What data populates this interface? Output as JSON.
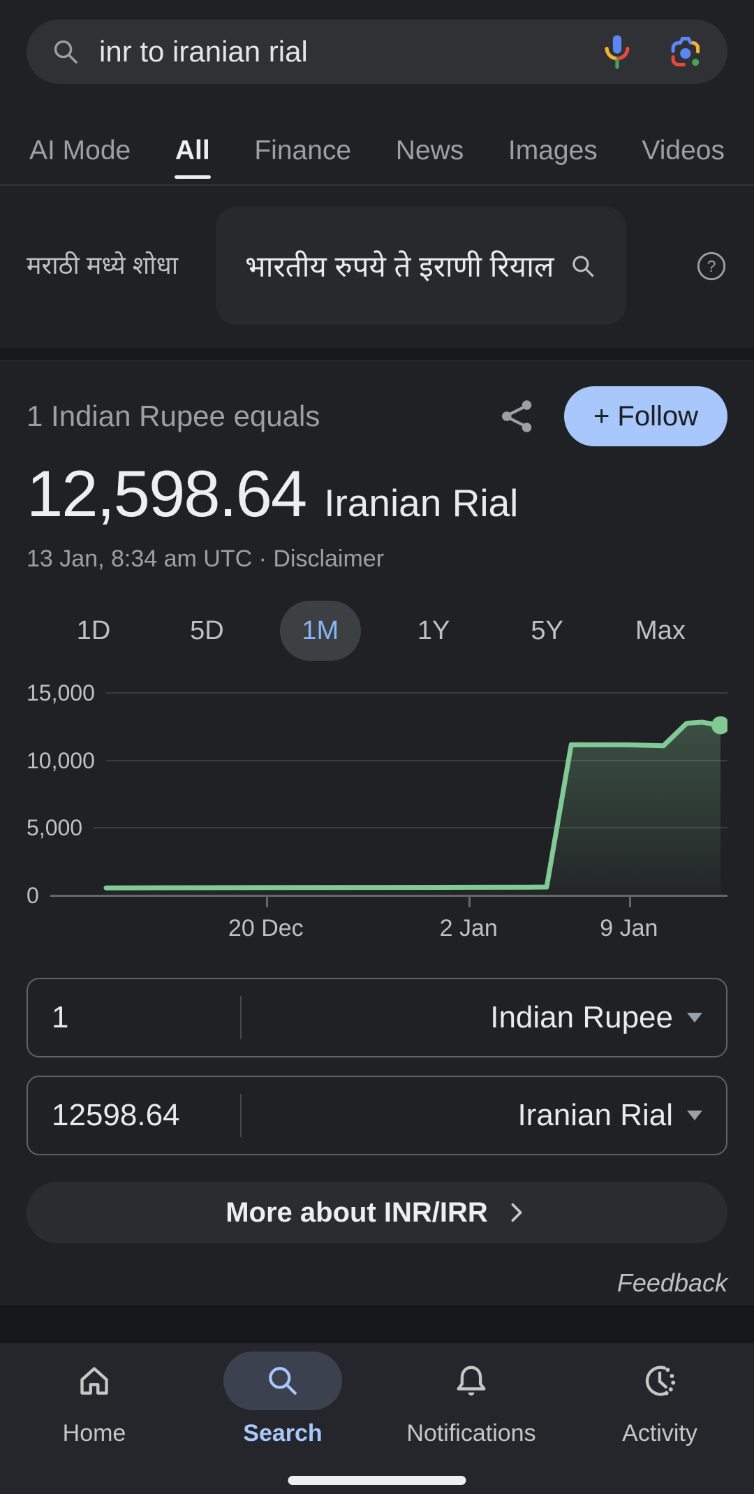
{
  "colors": {
    "accent_blue": "#8ab4f8",
    "follow_chip": "#a8c7fa",
    "chart_green": "#81c995"
  },
  "search_bar": {
    "query": "inr to iranian rial"
  },
  "tabs": [
    {
      "label": "AI Mode"
    },
    {
      "label": "All"
    },
    {
      "label": "Finance"
    },
    {
      "label": "News"
    },
    {
      "label": "Images"
    },
    {
      "label": "Videos"
    }
  ],
  "translate": {
    "label": "मराठी मध्ये शोधा",
    "query": "भारतीय रुपये ते इराणी रियाल"
  },
  "finance": {
    "subtitle": "1 Indian Rupee equals",
    "follow_label": "+ Follow",
    "rate_value": "12,598.64",
    "rate_currency": "Iranian Rial",
    "timestamp": "13 Jan, 8:34 am UTC · Disclaimer",
    "ranges": [
      {
        "label": "1D"
      },
      {
        "label": "5D"
      },
      {
        "label": "1M"
      },
      {
        "label": "1Y"
      },
      {
        "label": "5Y"
      },
      {
        "label": "Max"
      }
    ],
    "active_range": "1M",
    "converter": [
      {
        "amount": "1",
        "currency": "Indian Rupee"
      },
      {
        "amount": "12598.64",
        "currency": "Iranian Rial"
      }
    ],
    "more_label": "More about INR/IRR",
    "feedback_label": "Feedback"
  },
  "chart_data": {
    "type": "area",
    "title": "INR to IRR exchange rate, 1 month",
    "ylim": [
      0,
      15000
    ],
    "grid": true,
    "line_color": "#81c995",
    "last_value": 12598.64,
    "y_ticks": [
      {
        "value": 15000,
        "label": "15,000"
      },
      {
        "value": 10000,
        "label": "10,000"
      },
      {
        "value": 5000,
        "label": "5,000"
      },
      {
        "value": 0,
        "label": "0"
      }
    ],
    "x_ticks": [
      {
        "pos": 0.26,
        "label": "20 Dec"
      },
      {
        "pos": 0.59,
        "label": "2 Jan"
      },
      {
        "pos": 0.851,
        "label": "9 Jan"
      }
    ],
    "points": [
      [
        0,
        560
      ],
      [
        0.1,
        570
      ],
      [
        0.26,
        580
      ],
      [
        0.45,
        590
      ],
      [
        0.59,
        600
      ],
      [
        0.69,
        610
      ],
      [
        0.717,
        620
      ],
      [
        0.757,
        11160
      ],
      [
        0.85,
        11150
      ],
      [
        0.907,
        11080
      ],
      [
        0.945,
        12750
      ],
      [
        0.97,
        12830
      ],
      [
        1,
        12598.64
      ]
    ]
  },
  "bottom_nav": {
    "items": [
      {
        "label": "Home"
      },
      {
        "label": "Search"
      },
      {
        "label": "Notifications"
      },
      {
        "label": "Activity"
      }
    ],
    "active": "Search"
  }
}
